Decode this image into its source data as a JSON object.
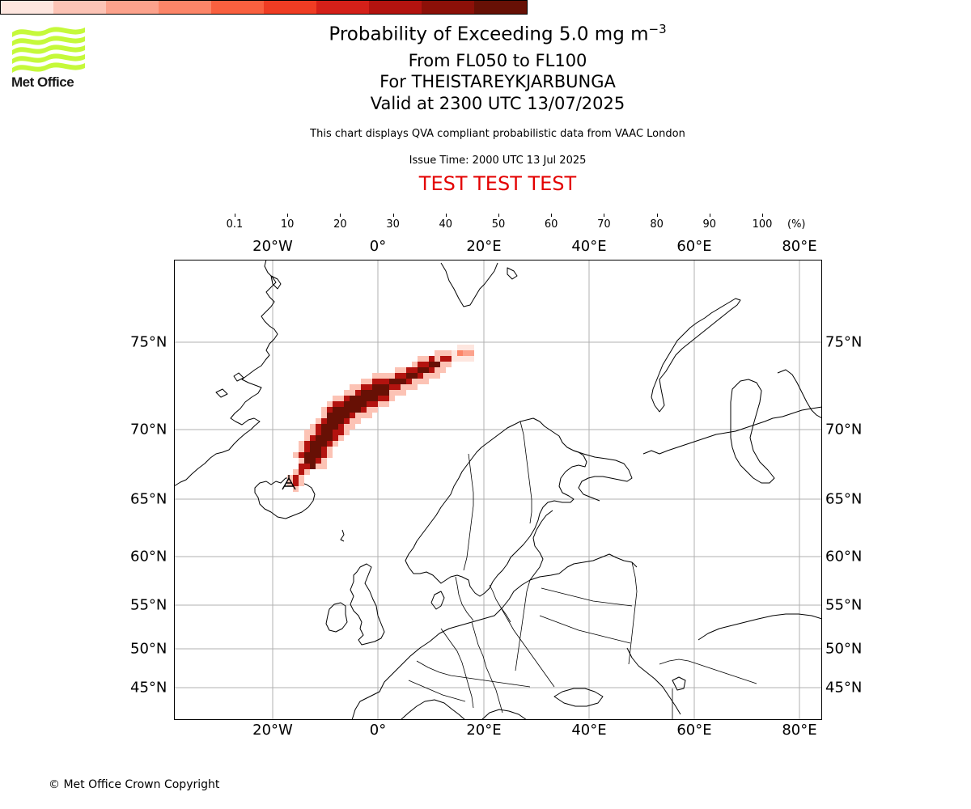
{
  "logo": {
    "text": "Met Office",
    "icon": "met-office-wave-logo",
    "color": "#c5f93a"
  },
  "titles": {
    "line1_prefix": "Probability of Exceeding 5.0 mg m",
    "line1_sup": "−3",
    "line2": "From FL050 to FL100",
    "line3": "For THEISTAREYKJARBUNGA",
    "line4": "Valid at 2300 UTC 13/07/2025",
    "subtitle": "This chart displays QVA compliant probabilistic data from VAAC London",
    "issue_time": "Issue Time: 2000 UTC 13 Jul 2025",
    "test_banner": "TEST TEST TEST",
    "test_color": "#e30000"
  },
  "colorbar": {
    "ticks": [
      "0.1",
      "10",
      "20",
      "30",
      "40",
      "50",
      "60",
      "70",
      "80",
      "90",
      "100"
    ],
    "unit": "(%)",
    "colors": [
      "#fee6df",
      "#fcc3b5",
      "#fca28c",
      "#fc8568",
      "#f9603f",
      "#ef3c23",
      "#d42019",
      "#b3130f",
      "#8c1008",
      "#671005"
    ]
  },
  "map": {
    "lon_labels": [
      "20°W",
      "0°",
      "20°E",
      "40°E",
      "60°E",
      "80°E"
    ],
    "lat_labels": [
      "75°N",
      "70°N",
      "65°N",
      "60°N",
      "55°N",
      "50°N",
      "45°N"
    ],
    "volcano": {
      "name": "THEISTAREYKJARBUNGA",
      "lat": 65.9,
      "lon": -16.8
    },
    "plume_direction": "north-east from Iceland towards 74°N 15°E",
    "probability_range_percent": [
      0.1,
      100
    ]
  },
  "copyright": "© Met Office Crown Copyright"
}
